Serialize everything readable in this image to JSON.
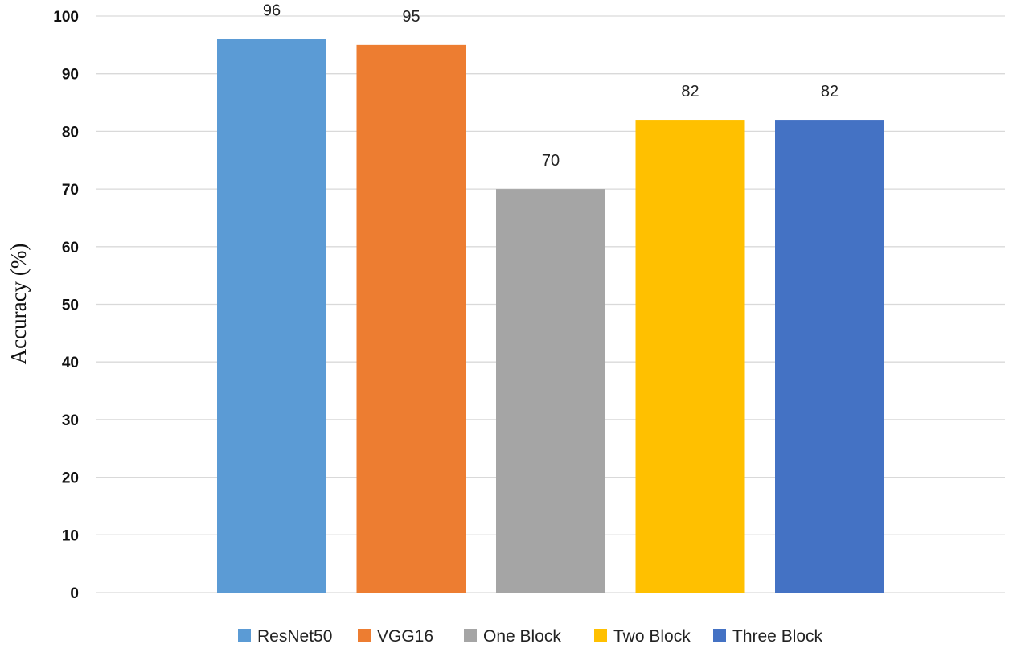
{
  "chart_data": {
    "type": "bar",
    "categories": [
      "ResNet50",
      "VGG16",
      "One Block",
      "Two Block",
      "Three Block"
    ],
    "values": [
      96,
      95,
      70,
      82,
      82
    ],
    "data_labels": [
      "96",
      "95",
      "70",
      "82",
      "82"
    ],
    "colors": [
      "#5B9BD5",
      "#ED7D31",
      "#A5A5A5",
      "#FFC000",
      "#4472C4"
    ],
    "ylabel": "Accuracy (%)",
    "ylim": [
      0,
      100
    ],
    "yticks": [
      "0",
      "10",
      "20",
      "30",
      "40",
      "50",
      "60",
      "70",
      "80",
      "90",
      "100"
    ],
    "grid": true,
    "legend": {
      "position": "bottom",
      "entries": [
        "ResNet50",
        "VGG16",
        "One Block",
        "Two Block",
        "Three Block"
      ]
    }
  }
}
